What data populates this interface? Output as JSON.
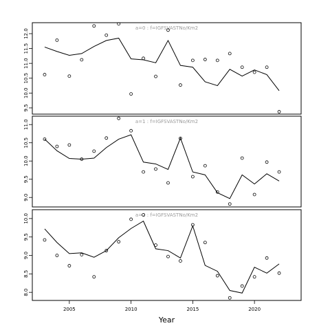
{
  "chart_data": [
    {
      "type": "line",
      "title": "a=0  :  f=IGFSVASTNo/Km2",
      "x": [
        2003,
        2004,
        2005,
        2006,
        2007,
        2008,
        2009,
        2010,
        2011,
        2012,
        2013,
        2014,
        2015,
        2016,
        2017,
        2018,
        2019,
        2020,
        2021,
        2022
      ],
      "xlim": [
        2002.0,
        2023.78
      ],
      "ylim": [
        9.29,
        12.37
      ],
      "yticks": [
        9.5,
        {
          "value": 10.0,
          "label": "10.0"
        },
        10.5,
        {
          "value": 11.0,
          "label": "11.0"
        },
        11.5,
        {
          "value": 12.0,
          "label": "12.0"
        }
      ],
      "series": [
        {
          "style": "line",
          "color": "#000000",
          "values": [
            11.55,
            11.4,
            11.27,
            11.33,
            11.57,
            11.77,
            11.85,
            11.15,
            11.12,
            11.02,
            11.77,
            10.93,
            10.87,
            10.38,
            10.25,
            10.8,
            10.57,
            10.78,
            10.62,
            10.08
          ]
        },
        {
          "style": "points",
          "color": "#000000",
          "values": [
            10.62,
            11.78,
            10.57,
            11.12,
            12.26,
            11.95,
            12.33,
            9.97,
            11.17,
            10.56,
            12.12,
            10.27,
            11.1,
            11.13,
            11.1,
            11.33,
            10.87,
            10.7,
            10.87,
            9.37
          ]
        }
      ]
    },
    {
      "type": "line",
      "title": "a=1  :  f=IGFSVASTNo/Km2",
      "x": [
        2003,
        2004,
        2005,
        2006,
        2007,
        2008,
        2009,
        2010,
        2011,
        2012,
        2013,
        2014,
        2015,
        2016,
        2017,
        2018,
        2019,
        2020,
        2021,
        2022
      ],
      "xlim": [
        2002.0,
        2023.78
      ],
      "ylim": [
        8.74,
        11.23
      ],
      "yticks": [
        {
          "value": 9.0,
          "label": "9.0"
        },
        9.5,
        {
          "value": 10.0,
          "label": "10.0"
        },
        10.5,
        {
          "value": 11.0,
          "label": "11.0"
        }
      ],
      "series": [
        {
          "style": "line",
          "color": "#000000",
          "values": [
            10.6,
            10.28,
            10.07,
            10.05,
            10.08,
            10.37,
            10.6,
            10.72,
            9.97,
            9.92,
            9.77,
            10.63,
            9.7,
            9.62,
            9.13,
            8.97,
            9.62,
            9.37,
            9.65,
            9.45
          ]
        },
        {
          "style": "points",
          "color": "#000000",
          "values": [
            10.6,
            10.4,
            10.44,
            10.05,
            10.27,
            10.63,
            11.17,
            10.83,
            9.7,
            9.78,
            9.4,
            10.62,
            9.57,
            9.87,
            9.15,
            8.82,
            10.08,
            9.08,
            9.97,
            9.7
          ]
        }
      ]
    },
    {
      "type": "line",
      "title": "a=2  :  f=IGFSVASTNo/Km2",
      "x": [
        2003,
        2004,
        2005,
        2006,
        2007,
        2008,
        2009,
        2010,
        2011,
        2012,
        2013,
        2014,
        2015,
        2016,
        2017,
        2018,
        2019,
        2020,
        2021,
        2022
      ],
      "xlim": [
        2002.0,
        2023.78
      ],
      "xticks": [
        2005,
        2010,
        2015,
        2020
      ],
      "xlabel": "Year",
      "ylim": [
        7.78,
        10.24
      ],
      "yticks": [
        {
          "value": 8.0,
          "label": "8.0"
        },
        8.5,
        {
          "value": 9.0,
          "label": "9.0"
        },
        9.5,
        {
          "value": 10.0,
          "label": "10.0"
        }
      ],
      "series": [
        {
          "style": "line",
          "color": "#000000",
          "values": [
            9.72,
            9.35,
            9.05,
            9.07,
            8.95,
            9.13,
            9.48,
            9.73,
            9.93,
            9.18,
            9.13,
            8.93,
            9.8,
            8.73,
            8.57,
            8.05,
            7.98,
            8.68,
            8.52,
            8.77
          ]
        },
        {
          "style": "points",
          "color": "#000000",
          "values": [
            9.42,
            9.0,
            8.72,
            9.02,
            8.42,
            9.13,
            9.37,
            9.98,
            10.1,
            9.28,
            8.97,
            8.85,
            9.83,
            9.35,
            8.45,
            7.85,
            8.17,
            8.42,
            8.93,
            8.52
          ]
        }
      ]
    }
  ]
}
